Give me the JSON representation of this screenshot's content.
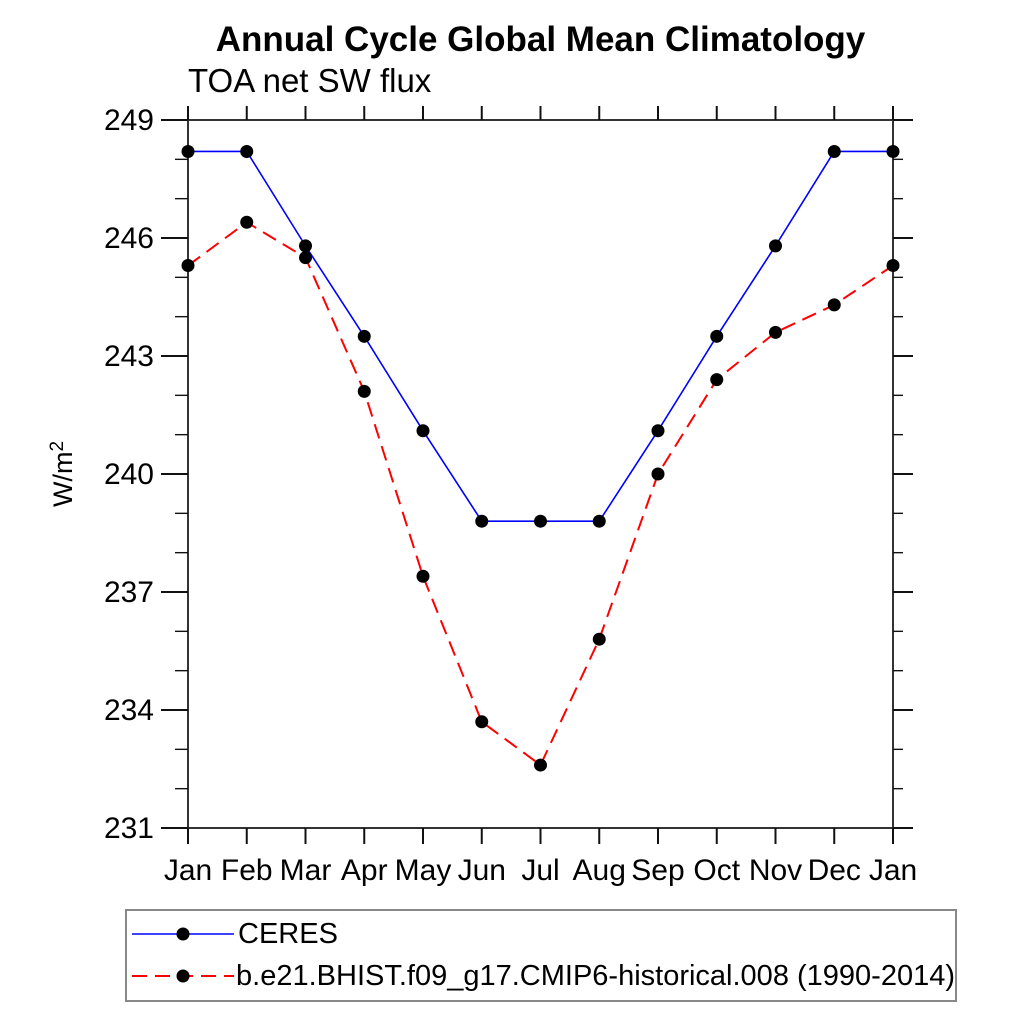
{
  "chart_data": {
    "type": "line",
    "title": "Annual Cycle Global Mean Climatology",
    "subtitle": "TOA net SW flux",
    "ylabel": "W/m²",
    "ylim": [
      231,
      249
    ],
    "y_major_ticks": [
      231,
      234,
      237,
      240,
      243,
      246,
      249
    ],
    "y_minor_step": 1,
    "grid": false,
    "legend_position": "bottom-left-box",
    "frame_color": "#333333",
    "tick_color": "#111111",
    "x_categories": [
      "Jan",
      "Feb",
      "Mar",
      "Apr",
      "May",
      "Jun",
      "Jul",
      "Aug",
      "Sep",
      "Oct",
      "Nov",
      "Dec",
      "Jan"
    ],
    "series": [
      {
        "name": "CERES",
        "color": "#0000ff",
        "style": "solid",
        "marker": "filled-circle",
        "marker_color": "#000000",
        "values": [
          248.2,
          248.2,
          245.8,
          243.5,
          241.1,
          238.8,
          238.8,
          238.8,
          241.1,
          243.5,
          245.8,
          248.2,
          248.2
        ]
      },
      {
        "name": "b.e21.BHIST.f09_g17.CMIP6-historical.008 (1990-2014)",
        "color": "#ff0000",
        "style": "dashed",
        "marker": "filled-circle",
        "marker_color": "#000000",
        "values": [
          245.3,
          246.4,
          245.5,
          242.1,
          237.4,
          233.7,
          232.6,
          235.8,
          240.0,
          242.4,
          243.6,
          244.3,
          245.3
        ]
      }
    ]
  }
}
